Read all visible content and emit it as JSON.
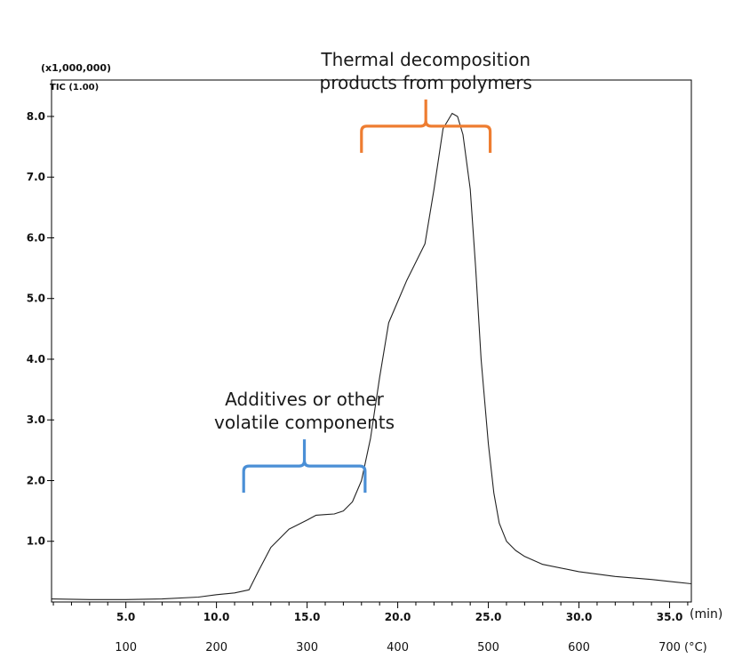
{
  "chart_data": {
    "type": "line",
    "y_scale_label": "(x1,000,000)",
    "trace_label": "TIC (1.00)",
    "x_unit": "(min)",
    "x_temp_unit": "(°C)",
    "xlim": [
      0.9,
      36.2
    ],
    "ylim": [
      0.0,
      8.6
    ],
    "x_ticks": [
      {
        "v": 5,
        "label": "5.0"
      },
      {
        "v": 10,
        "label": "10.0"
      },
      {
        "v": 15,
        "label": "15.0"
      },
      {
        "v": 20,
        "label": "20.0"
      },
      {
        "v": 25,
        "label": "25.0"
      },
      {
        "v": 30,
        "label": "30.0"
      },
      {
        "v": 35,
        "label": "35.0"
      }
    ],
    "y_ticks": [
      {
        "v": 1,
        "label": "1.0"
      },
      {
        "v": 2,
        "label": "2.0"
      },
      {
        "v": 3,
        "label": "3.0"
      },
      {
        "v": 4,
        "label": "4.0"
      },
      {
        "v": 5,
        "label": "5.0"
      },
      {
        "v": 6,
        "label": "6.0"
      },
      {
        "v": 7,
        "label": "7.0"
      },
      {
        "v": 8,
        "label": "8.0"
      }
    ],
    "temp_ticks": [
      {
        "v": 5,
        "label": "100"
      },
      {
        "v": 10,
        "label": "200"
      },
      {
        "v": 15,
        "label": "300"
      },
      {
        "v": 20,
        "label": "400"
      },
      {
        "v": 25,
        "label": "500"
      },
      {
        "v": 30,
        "label": "600"
      },
      {
        "v": 35,
        "label": "700"
      }
    ],
    "series": [
      {
        "x": [
          0.9,
          3,
          5,
          7,
          9,
          10,
          11,
          11.8,
          12.3,
          13,
          14,
          15,
          15.5,
          16,
          16.5,
          17,
          17.5,
          18,
          18.5,
          19,
          19.5,
          20,
          20.5,
          21,
          21.5,
          22,
          22.5,
          23,
          23.3,
          23.6,
          24,
          24.3,
          24.6,
          25,
          25.3,
          25.6,
          26,
          26.5,
          27,
          28,
          30,
          32,
          34,
          36.2
        ],
        "y": [
          0.05,
          0.04,
          0.04,
          0.05,
          0.08,
          0.12,
          0.15,
          0.2,
          0.5,
          0.9,
          1.2,
          1.35,
          1.43,
          1.44,
          1.45,
          1.5,
          1.65,
          2.0,
          2.7,
          3.7,
          4.6,
          4.95,
          5.3,
          5.6,
          5.9,
          6.8,
          7.8,
          8.05,
          8.0,
          7.7,
          6.8,
          5.5,
          4.0,
          2.6,
          1.8,
          1.3,
          1.0,
          0.85,
          0.75,
          0.62,
          0.5,
          0.42,
          0.37,
          0.3
        ]
      }
    ],
    "annotations": [
      {
        "lines": [
          "Thermal decomposition",
          "products from polymers"
        ],
        "color": "#ee7d31",
        "x_start": 18.0,
        "x_end": 25.1,
        "y": 7.4
      },
      {
        "lines": [
          "Additives or other",
          "volatile components"
        ],
        "color": "#4a8fd6",
        "x_start": 11.5,
        "x_end": 18.2,
        "y": 1.8
      }
    ]
  }
}
